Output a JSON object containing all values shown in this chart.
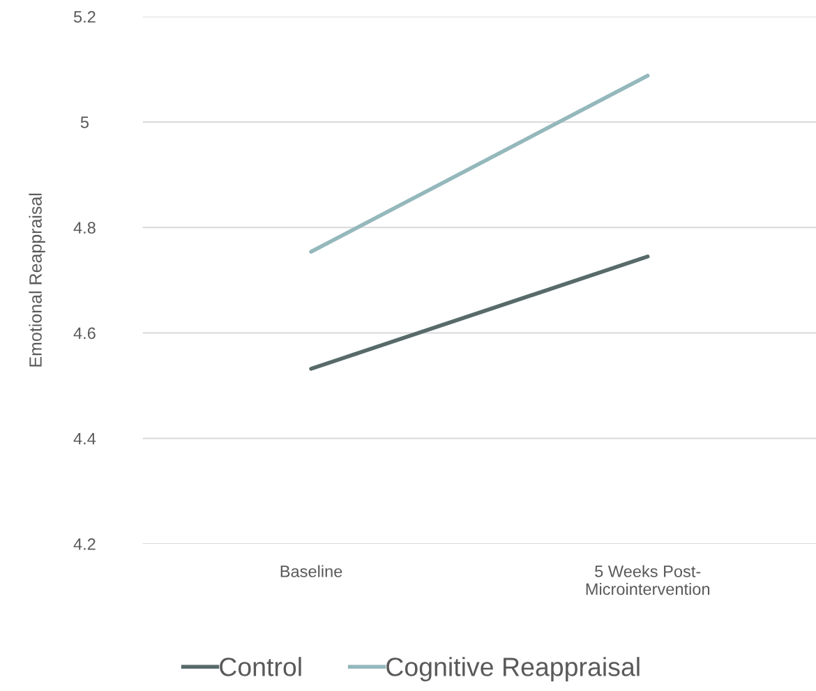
{
  "chart_data": {
    "type": "line",
    "ylabel": "Emotional Reappraisal",
    "categories": [
      "Baseline",
      "5 Weeks Post-\nMicrointervention"
    ],
    "series": [
      {
        "name": "Control",
        "color": "#586a6a",
        "values": [
          4.532,
          4.745
        ]
      },
      {
        "name": "Cognitive Reappraisal",
        "color": "#94b8bc",
        "values": [
          4.754,
          5.088
        ]
      }
    ],
    "ylim": [
      4.2,
      5.2
    ],
    "yticks": [
      {
        "value": 4.2,
        "label": "4.2"
      },
      {
        "value": 4.4,
        "label": "4.4"
      },
      {
        "value": 4.6,
        "label": "4.6"
      },
      {
        "value": 4.8,
        "label": "4.8"
      },
      {
        "value": 5,
        "label": "5"
      },
      {
        "value": 5.2,
        "label": "5.2"
      }
    ],
    "grid": "y",
    "legend": "bottom",
    "marker": "none",
    "line_style": "solid"
  }
}
